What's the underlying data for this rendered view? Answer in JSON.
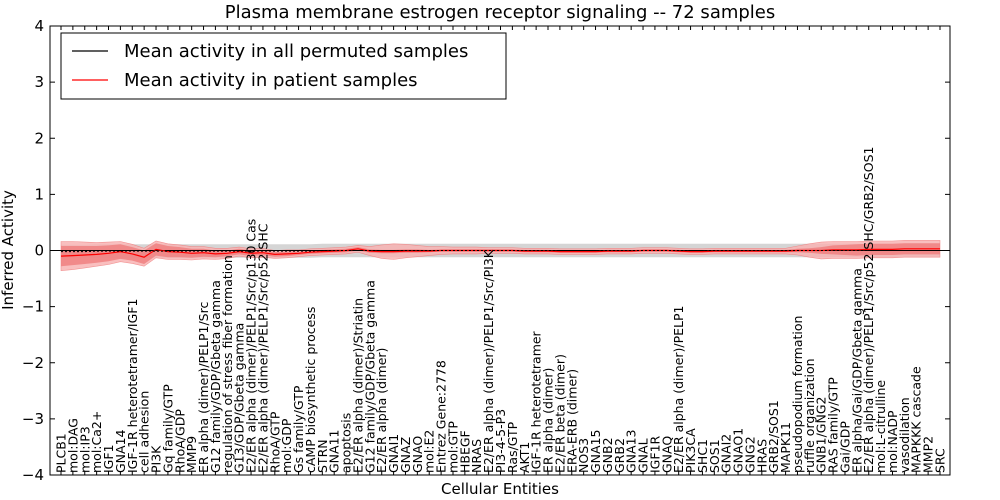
{
  "chart_data": {
    "type": "line",
    "title": "Plasma membrane estrogen receptor signaling -- 72 samples",
    "xlabel": "Cellular Entities",
    "ylabel": "Inferred Activity",
    "ylim": [
      -4,
      4
    ],
    "yticks": [
      -4,
      -3,
      -2,
      -1,
      0,
      1,
      2,
      3,
      4
    ],
    "ytick_labels": [
      "−4",
      "−3",
      "−2",
      "−1",
      "0",
      "1",
      "2",
      "3",
      "4"
    ],
    "grid": false,
    "legend_position": "top-left",
    "colors": {
      "permuted": "#000000",
      "patient": "#ff0000",
      "patient_band_inner": "#f08080",
      "patient_band_outer": "#f8b4b4",
      "permuted_band": "#d0d0d0"
    },
    "categories": [
      "PLCB1",
      "mol:DAG",
      "mol:IP3",
      "mol:Ca2+",
      "IGF1",
      "GNA14",
      "IGF-1R heterotetramer/IGF1",
      "cell adhesion",
      "PI3K",
      "Gq family/GTP",
      "RhoA/GDP",
      "MMP9",
      "ER alpha (dimer)/PELP1/Src",
      "G12 family/GDP/Gbeta gamma",
      "regulation of stress fiber formation",
      "G13/GDP/Gbeta gamma",
      "E2/ER alpha (dimer)/PELP1/Src/p130 Cas",
      "E2/ER alpha (dimer)/PELP1/Src/p52 SHC",
      "RhoA/GTP",
      "mol:GDP",
      "Gs family/GTP",
      "cAMP biosynthetic process",
      "STRN",
      "GNA11",
      "apoptosis",
      "E2/ER alpha (dimer)/Striatin",
      "G12 family/GDP/Gbeta gamma",
      "E2/ER alpha (dimer)",
      "GNAI1",
      "GNAZ",
      "GNAO",
      "mol:E2",
      "Entrez Gene:2778",
      "mol:GTP",
      "HBEGF",
      "NRAS",
      "E2/ER alpha (dimer)/PELP1/Src/PI3K",
      "PI3-4-5-P3",
      "Ras/GTP",
      "AKT1",
      "IGF-1R heterotetramer",
      "ER alpha (dimer)",
      "E2/ER beta (dimer)",
      "ERA-ERB (dimer)",
      "NOS3",
      "GNA15",
      "GNB2",
      "GRB2",
      "GNA13",
      "GNAL",
      "IGF1R",
      "GNAQ",
      "E2/ER alpha (dimer)/PELP1",
      "PIK3CA",
      "SHC1",
      "SOS1",
      "GNAI2",
      "GNAO1",
      "GNG2",
      "HRAS",
      "GRB2/SOS1",
      "MAPK11",
      "pseudopodium formation",
      "ruffle organization",
      "GNB1/GNG2",
      "RAS family/GTP",
      "Gai/GDP",
      "ER alpha/Gai/GDP/Gbeta gamma",
      "E2/ER alpha (dimer)/PELP1/Src/p52 SHC/GRB2/SOS1",
      "mol:L-citrulline",
      "mol:NADP",
      "vasodilation",
      "MAPKKK cascade",
      "MMP2",
      "SRC"
    ],
    "series": [
      {
        "name": "Mean activity in all permuted samples",
        "values": [
          -0.02,
          -0.02,
          -0.02,
          -0.01,
          -0.01,
          -0.01,
          -0.01,
          -0.01,
          -0.01,
          -0.01,
          -0.01,
          -0.01,
          -0.01,
          -0.01,
          -0.01,
          -0.01,
          -0.01,
          -0.01,
          -0.01,
          -0.01,
          -0.01,
          -0.01,
          0.0,
          0.0,
          0.0,
          0.0,
          0.0,
          0.0,
          0.0,
          0.0,
          0.0,
          0.0,
          0.0,
          0.0,
          0.0,
          0.0,
          0.0,
          0.0,
          0.0,
          0.0,
          0.0,
          0.0,
          0.0,
          0.0,
          0.0,
          0.0,
          0.0,
          0.0,
          0.0,
          0.0,
          0.0,
          0.0,
          0.0,
          0.0,
          0.0,
          0.0,
          0.0,
          0.0,
          0.0,
          0.0,
          0.0,
          0.0,
          0.0,
          0.0,
          0.0,
          0.0,
          0.0,
          0.0,
          0.0,
          0.0,
          0.0,
          0.0,
          0.0,
          0.0,
          0.0
        ]
      },
      {
        "name": "Mean activity in patient samples",
        "values": [
          -0.1,
          -0.09,
          -0.08,
          -0.07,
          -0.05,
          -0.02,
          -0.06,
          -0.12,
          0.02,
          -0.02,
          -0.03,
          -0.05,
          -0.04,
          -0.06,
          -0.05,
          -0.02,
          -0.05,
          -0.04,
          -0.07,
          -0.06,
          -0.05,
          -0.03,
          -0.02,
          -0.01,
          0.0,
          0.03,
          -0.01,
          -0.02,
          -0.02,
          -0.01,
          -0.01,
          -0.01,
          0.0,
          0.0,
          0.0,
          0.0,
          0.0,
          0.0,
          0.0,
          -0.01,
          -0.01,
          -0.01,
          -0.02,
          -0.02,
          -0.02,
          -0.02,
          -0.01,
          -0.01,
          -0.01,
          0.0,
          0.0,
          0.0,
          -0.01,
          -0.02,
          -0.02,
          -0.01,
          -0.01,
          -0.01,
          -0.01,
          -0.01,
          -0.01,
          -0.01,
          0.0,
          0.0,
          0.0,
          0.01,
          0.01,
          0.01,
          0.02,
          0.02,
          0.02,
          0.03,
          0.03,
          0.03,
          0.03
        ]
      }
    ],
    "patient_band_inner_halfwidth": [
      0.18,
      0.17,
      0.16,
      0.15,
      0.14,
      0.13,
      0.12,
      0.12,
      0.11,
      0.1,
      0.09,
      0.08,
      0.07,
      0.06,
      0.05,
      0.05,
      0.05,
      0.04,
      0.04,
      0.04,
      0.03,
      0.03,
      0.03,
      0.03,
      0.03,
      0.03,
      0.03,
      0.03,
      0.03,
      0.03,
      0.03,
      0.02,
      0.02,
      0.02,
      0.02,
      0.02,
      0.02,
      0.02,
      0.02,
      0.02,
      0.02,
      0.02,
      0.02,
      0.02,
      0.02,
      0.02,
      0.02,
      0.02,
      0.02,
      0.02,
      0.02,
      0.02,
      0.02,
      0.02,
      0.02,
      0.02,
      0.02,
      0.02,
      0.02,
      0.02,
      0.02,
      0.02,
      0.03,
      0.04,
      0.06,
      0.08,
      0.09,
      0.1,
      0.1,
      0.1,
      0.1,
      0.1,
      0.1,
      0.1,
      0.1
    ],
    "patient_band_outer_halfwidth": [
      0.26,
      0.25,
      0.23,
      0.21,
      0.2,
      0.18,
      0.17,
      0.16,
      0.15,
      0.14,
      0.13,
      0.12,
      0.11,
      0.1,
      0.09,
      0.08,
      0.08,
      0.08,
      0.07,
      0.07,
      0.06,
      0.06,
      0.06,
      0.06,
      0.06,
      0.06,
      0.08,
      0.12,
      0.14,
      0.12,
      0.1,
      0.08,
      0.07,
      0.06,
      0.06,
      0.06,
      0.05,
      0.05,
      0.05,
      0.05,
      0.05,
      0.05,
      0.05,
      0.05,
      0.05,
      0.05,
      0.05,
      0.05,
      0.05,
      0.05,
      0.05,
      0.05,
      0.05,
      0.05,
      0.05,
      0.05,
      0.05,
      0.05,
      0.05,
      0.05,
      0.05,
      0.05,
      0.08,
      0.12,
      0.15,
      0.15,
      0.15,
      0.15,
      0.15,
      0.15,
      0.15,
      0.15,
      0.15,
      0.15,
      0.15
    ],
    "permuted_band_halfwidth": [
      0.12,
      0.12,
      0.12,
      0.12,
      0.12,
      0.12,
      0.12,
      0.12,
      0.12,
      0.12,
      0.12,
      0.12,
      0.12,
      0.12,
      0.12,
      0.12,
      0.12,
      0.12,
      0.12,
      0.12,
      0.12,
      0.12,
      0.12,
      0.12,
      0.12,
      0.12,
      0.12,
      0.12,
      0.12,
      0.12,
      0.12,
      0.12,
      0.12,
      0.12,
      0.12,
      0.12,
      0.12,
      0.12,
      0.12,
      0.12,
      0.12,
      0.12,
      0.12,
      0.12,
      0.12,
      0.12,
      0.12,
      0.12,
      0.12,
      0.12,
      0.12,
      0.12,
      0.12,
      0.12,
      0.12,
      0.12,
      0.12,
      0.12,
      0.12,
      0.12,
      0.12,
      0.12,
      0.12,
      0.12,
      0.12,
      0.12,
      0.12,
      0.12,
      0.12,
      0.12,
      0.12,
      0.12,
      0.12,
      0.12,
      0.12
    ]
  }
}
